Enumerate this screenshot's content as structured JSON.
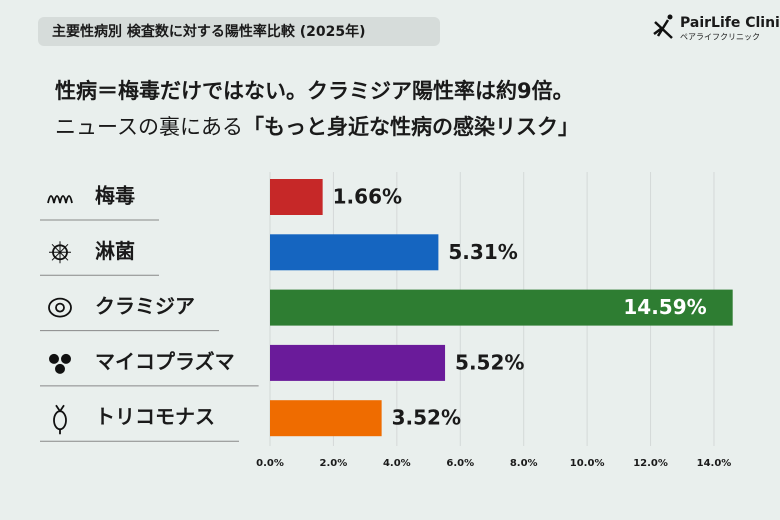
{
  "chart_data": {
    "type": "hbar",
    "tag": "主要性病別 検査数に対する陽性率比較 (2025年)",
    "brand": "PairLife Clinic",
    "brand_sub": "ペアライフクリニック",
    "headline": "性病＝梅毒だけではない。クラミジア陽性率は約9倍。",
    "subheadline": "ニュースの裏にある",
    "subheadline_emphasis": "「もっと身近な性病の感染リスク」",
    "categories": [
      "梅毒",
      "淋菌",
      "クラミジア",
      "マイコプラズマ",
      "トリコモナス"
    ],
    "values": [
      1.66,
      5.31,
      14.59,
      5.52,
      3.52
    ],
    "value_labels": [
      "1.66%",
      "5.31%",
      "14.59%",
      "5.52%",
      "3.52%"
    ],
    "colors": [
      "#c62828",
      "#1565c0",
      "#2e7d32",
      "#6a1b9a",
      "#ef6c00"
    ],
    "xlim": [
      0,
      14.6
    ],
    "xticks": [
      {
        "value": 0,
        "label": "0.0%"
      },
      {
        "value": 2,
        "label": "2.0%"
      },
      {
        "value": 4,
        "label": "4.0%"
      },
      {
        "value": 6,
        "label": "6.0%"
      },
      {
        "value": 8,
        "label": "8.0%"
      },
      {
        "value": 10,
        "label": "10.0%"
      },
      {
        "value": 12,
        "label": "12.0%"
      },
      {
        "value": 14,
        "label": "14.0%"
      }
    ],
    "grid": true
  }
}
